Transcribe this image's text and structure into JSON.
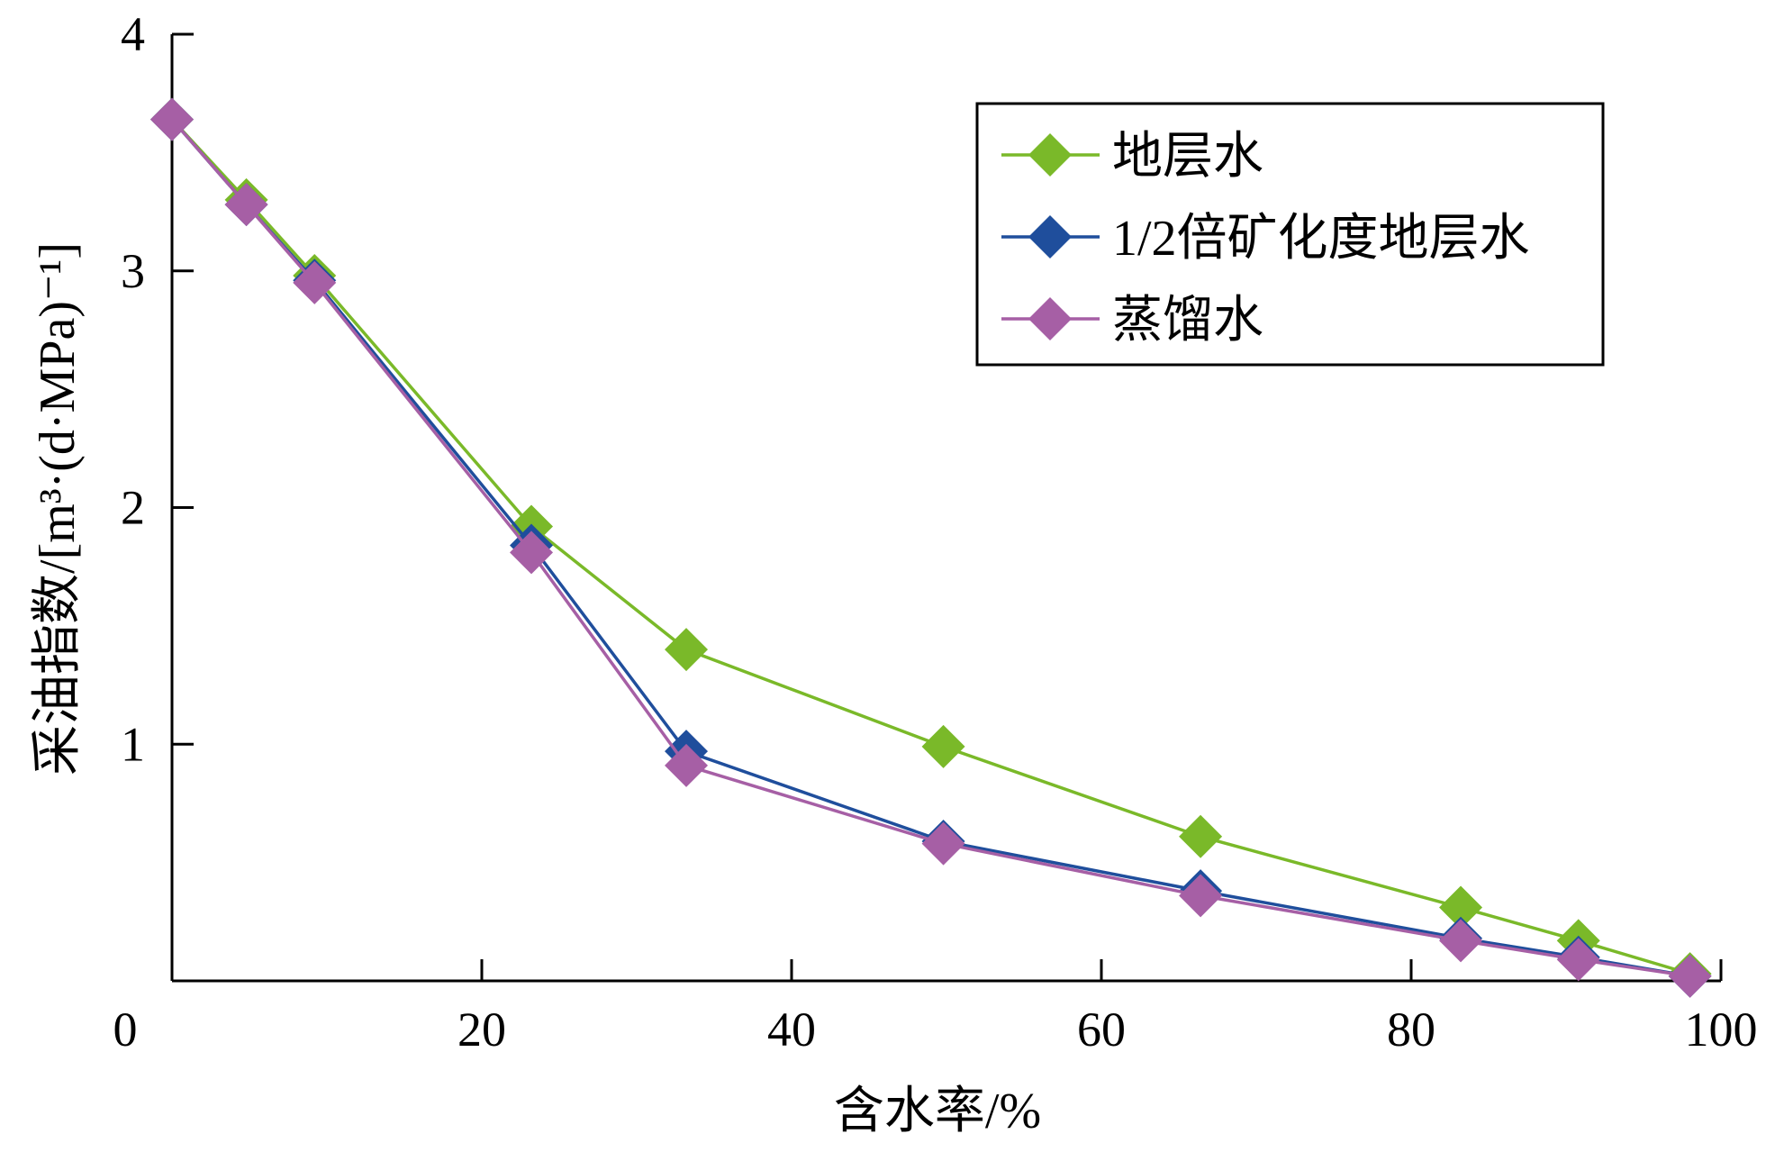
{
  "chart_data": {
    "type": "line",
    "title": "",
    "xlabel": "含水率/%",
    "ylabel": "采油指数/[m³·(d·MPa)⁻¹]",
    "xlim": [
      0,
      100
    ],
    "ylim": [
      0,
      4
    ],
    "xticks": [
      0,
      20,
      40,
      60,
      80,
      100
    ],
    "yticks": [
      1,
      2,
      3,
      4
    ],
    "grid": false,
    "legend_position": "top-right",
    "series": [
      {
        "name": "地层水",
        "color": "#7ab929",
        "marker": "diamond",
        "x": [
          0,
          4.8,
          9.2,
          23.2,
          33.2,
          49.8,
          66.4,
          83.2,
          90.8,
          98.0
        ],
        "y": [
          3.64,
          3.3,
          2.98,
          1.92,
          1.4,
          0.99,
          0.61,
          0.31,
          0.17,
          0.03
        ]
      },
      {
        "name": "1/2倍矿化度地层水",
        "color": "#1f4e9c",
        "marker": "diamond",
        "x": [
          0,
          4.8,
          9.2,
          23.2,
          33.2,
          49.8,
          66.4,
          83.2,
          90.8,
          98.0
        ],
        "y": [
          3.64,
          3.28,
          2.96,
          1.84,
          0.97,
          0.59,
          0.38,
          0.18,
          0.1,
          0.02
        ]
      },
      {
        "name": "蒸馏水",
        "color": "#a65fa5",
        "marker": "diamond",
        "x": [
          0,
          4.8,
          9.2,
          23.2,
          33.2,
          49.8,
          66.4,
          83.2,
          90.8,
          98.0
        ],
        "y": [
          3.64,
          3.28,
          2.95,
          1.81,
          0.91,
          0.58,
          0.36,
          0.17,
          0.09,
          0.02
        ]
      }
    ]
  }
}
